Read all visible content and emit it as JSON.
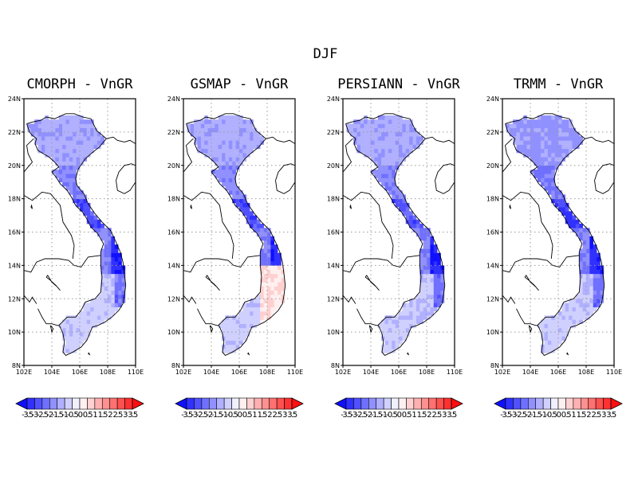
{
  "figure": {
    "title": "DJF"
  },
  "axes": {
    "lat_ticks": [
      "24N",
      "22N",
      "20N",
      "18N",
      "16N",
      "14N",
      "12N",
      "10N",
      "8N"
    ],
    "lon_ticks": [
      "102E",
      "104E",
      "106E",
      "108E",
      "110E"
    ],
    "lat_range": [
      8,
      24
    ],
    "lon_range": [
      102,
      110
    ],
    "grid": "dotted"
  },
  "panels": [
    {
      "title": "CMORPH - VnGR",
      "key": "cmorph"
    },
    {
      "title": "GSMAP - VnGR",
      "key": "gsmap"
    },
    {
      "title": "PERSIANN - VnGR",
      "key": "persiann"
    },
    {
      "title": "TRMM - VnGR",
      "key": "trmm"
    }
  ],
  "colorbar": {
    "labels": [
      "-3.5",
      "-3",
      "-2.5",
      "-2",
      "-1.5",
      "-1",
      "-0.5",
      "0",
      "0.5",
      "1",
      "1.5",
      "2",
      "2.5",
      "3",
      "3.5"
    ],
    "colors": [
      "#1010ff",
      "#3030ff",
      "#5050ff",
      "#7070ff",
      "#9090ff",
      "#b0b0ff",
      "#d0d0ff",
      "#f0f0ff",
      "#fff0f0",
      "#ffd0d0",
      "#ffb0b0",
      "#ff9090",
      "#ff7070",
      "#ff5050",
      "#ff3030",
      "#ff1010"
    ]
  }
}
